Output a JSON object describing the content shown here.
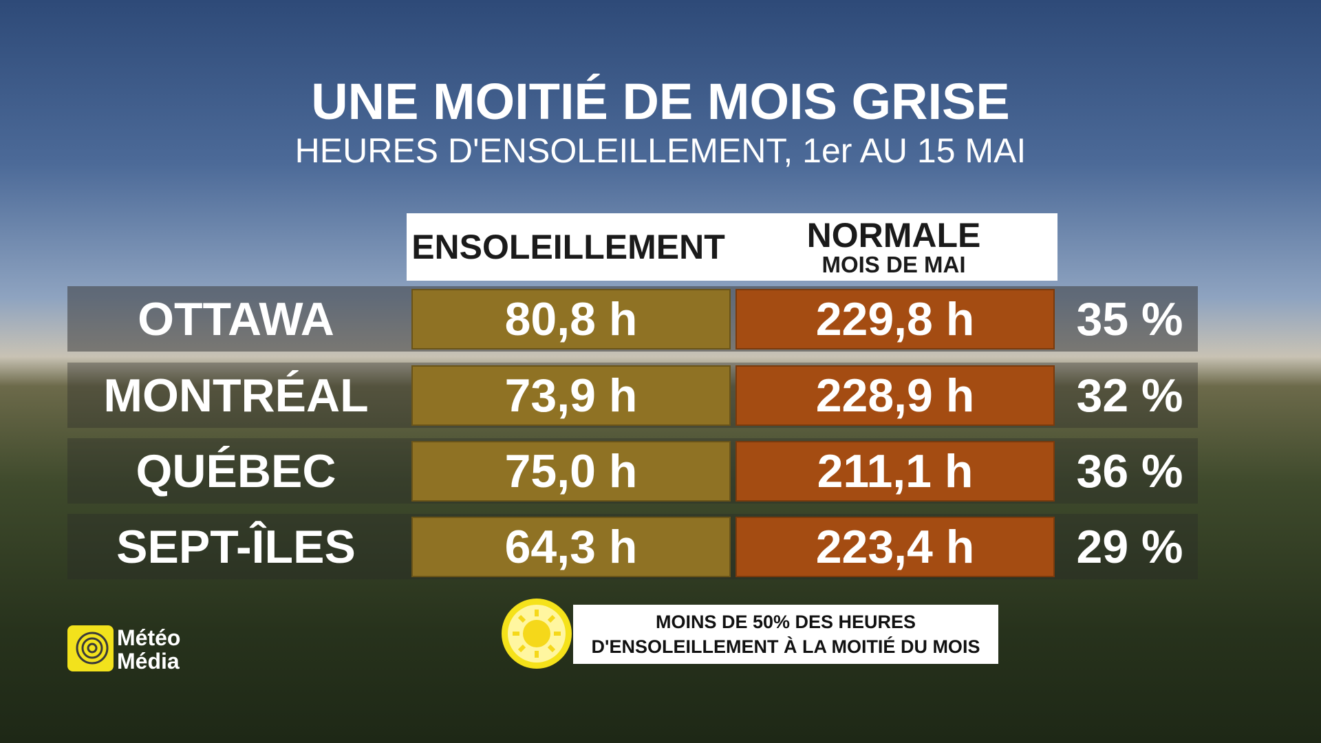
{
  "header": {
    "title": "UNE MOITIÉ DE MOIS GRISE",
    "subtitle": "HEURES D'ENSOLEILLEMENT, 1er AU 15 MAI"
  },
  "table": {
    "columns": [
      {
        "title": "ENSOLEILLEMENT"
      },
      {
        "title": "NORMALE",
        "subtitle": "MOIS DE MAI"
      }
    ],
    "rows": [
      [
        "OTTAWA",
        "80,8 h",
        "229,8 h",
        "35 %"
      ],
      [
        "MONTRÉAL",
        "73,9 h",
        "228,9 h",
        "32 %"
      ],
      [
        "QUÉBEC",
        "75,0 h",
        "211,1 h",
        "36 %"
      ],
      [
        "SEPT-ÎLES",
        "64,3 h",
        "223,4 h",
        "29 %"
      ]
    ]
  },
  "note": {
    "lines": [
      "MOINS DE 50% DES HEURES",
      "D'ENSOLEILLEMENT À LA MOITIÉ DU MOIS"
    ]
  },
  "logo": {
    "lines": [
      "Météo",
      "Média"
    ]
  }
}
